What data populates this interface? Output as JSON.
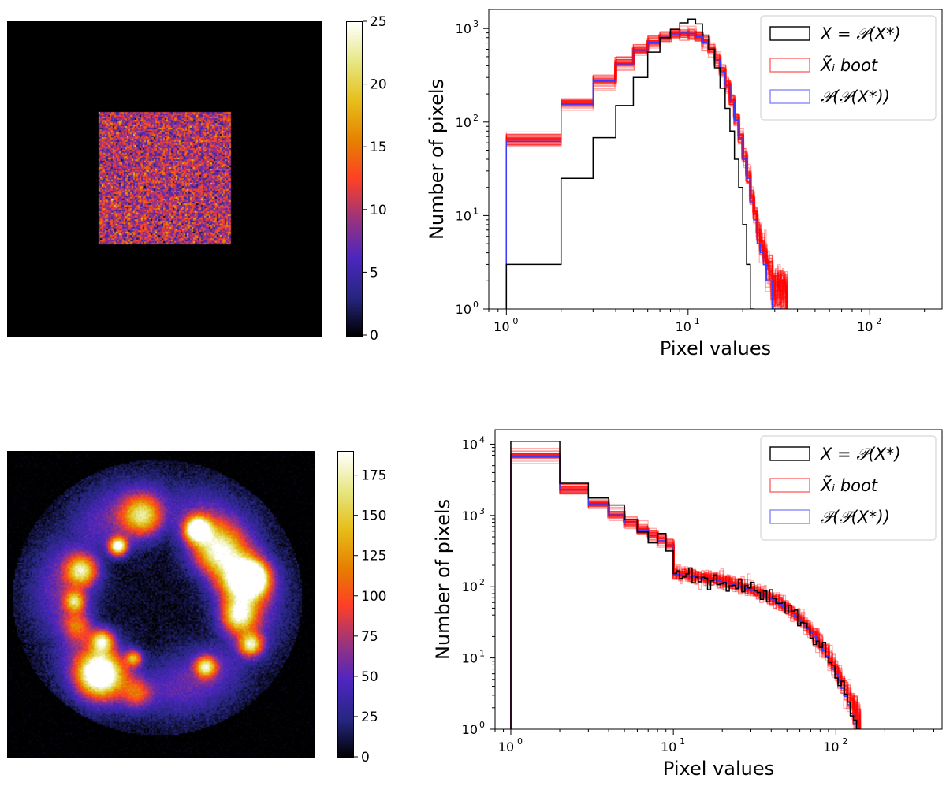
{
  "colors": {
    "observed": "#000000",
    "bootstrap": "#ff0000",
    "poisson": "#3a3aff",
    "background": "#000000"
  },
  "legend": {
    "observed": "X = 𝒫(X*)",
    "bootstrap": "X̃ᵢ boot",
    "poisson": "𝒫(𝒫(X*))"
  },
  "panels": [
    {
      "image": {
        "name": "simulated-square-image",
        "kind": "square",
        "colorbar": {
          "min": 0,
          "max": 25,
          "ticks": [
            "0",
            "5",
            "10",
            "15",
            "20",
            "25"
          ]
        }
      },
      "chart_data": {
        "type": "histogram-step",
        "xlabel": "Pixel values",
        "ylabel": "Number of pixels",
        "xscale": "log",
        "yscale": "log",
        "xlim": [
          0.8,
          250
        ],
        "ylim": [
          1,
          1600
        ],
        "xticks": [
          {
            "v": 1,
            "b": "10",
            "e": "0"
          },
          {
            "v": 10,
            "b": "10",
            "e": "1"
          },
          {
            "v": 100,
            "b": "10",
            "e": "2"
          }
        ],
        "yticks": [
          {
            "v": 1,
            "b": "10",
            "e": "0"
          },
          {
            "v": 10,
            "b": "10",
            "e": "1"
          },
          {
            "v": 100,
            "b": "10",
            "e": "2"
          },
          {
            "v": 1000,
            "b": "10",
            "e": "3"
          }
        ],
        "series": [
          {
            "name": "observed",
            "edges": [
              1,
              2,
              3,
              4,
              5,
              6,
              7,
              8,
              9,
              10,
              11,
              12,
              13,
              14,
              15,
              16,
              17,
              18,
              19,
              20,
              21,
              22,
              23
            ],
            "counts": [
              3,
              25,
              68,
              150,
              300,
              560,
              800,
              980,
              1150,
              1260,
              1120,
              850,
              600,
              380,
              230,
              140,
              80,
              40,
              20,
              8,
              3,
              1
            ]
          },
          {
            "name": "bootstrap",
            "edges": [
              1,
              2,
              3,
              4,
              5,
              6,
              7,
              8,
              9,
              10,
              11,
              12,
              13,
              14,
              15,
              16,
              17,
              18,
              19,
              20,
              21,
              22,
              23,
              24,
              25,
              26,
              27,
              28,
              29,
              30,
              31,
              32,
              33,
              34,
              35
            ],
            "counts": [
              65,
              160,
              280,
              430,
              590,
              720,
              810,
              880,
              900,
              890,
              820,
              720,
              600,
              470,
              350,
              250,
              170,
              110,
              70,
              42,
              26,
              15,
              10,
              6,
              4,
              3,
              2,
              2,
              1,
              1,
              1,
              1,
              1,
              1
            ]
          },
          {
            "name": "poisson",
            "edges": [
              1,
              2,
              3,
              4,
              5,
              6,
              7,
              8,
              9,
              10,
              11,
              12,
              13,
              14,
              15,
              16,
              17,
              18,
              19,
              20,
              21,
              22,
              23,
              24,
              25,
              26,
              27,
              28,
              29,
              30,
              31,
              32,
              33
            ],
            "counts": [
              62,
              155,
              275,
              420,
              585,
              715,
              805,
              875,
              895,
              885,
              815,
              715,
              595,
              465,
              345,
              245,
              165,
              105,
              68,
              40,
              25,
              14,
              9,
              5,
              4,
              3,
              2,
              2,
              1,
              1,
              1,
              1
            ]
          }
        ],
        "bootstrap_spread": 0.18
      }
    },
    {
      "image": {
        "name": "supernova-remnant-image",
        "kind": "remnant",
        "colorbar": {
          "min": 0,
          "max": 190,
          "ticks": [
            "0",
            "25",
            "50",
            "75",
            "100",
            "125",
            "150",
            "175"
          ]
        }
      },
      "chart_data": {
        "type": "histogram-step",
        "xlabel": "Pixel values",
        "ylabel": "Number of pixels",
        "xscale": "log",
        "yscale": "log",
        "xlim": [
          0.8,
          450
        ],
        "ylim": [
          1,
          16000
        ],
        "xticks": [
          {
            "v": 1,
            "b": "10",
            "e": "0"
          },
          {
            "v": 10,
            "b": "10",
            "e": "1"
          },
          {
            "v": 100,
            "b": "10",
            "e": "2"
          }
        ],
        "yticks": [
          {
            "v": 1,
            "b": "10",
            "e": "0"
          },
          {
            "v": 10,
            "b": "10",
            "e": "1"
          },
          {
            "v": 100,
            "b": "10",
            "e": "2"
          },
          {
            "v": 1000,
            "b": "10",
            "e": "3"
          },
          {
            "v": 10000,
            "b": "10",
            "e": "4"
          }
        ],
        "model": {
          "start": 1,
          "end": 140,
          "first_count_observed": 11000,
          "first_count_bootstrap": 6800,
          "cutoff": 50
        },
        "bootstrap_spread": 0.22
      }
    }
  ]
}
